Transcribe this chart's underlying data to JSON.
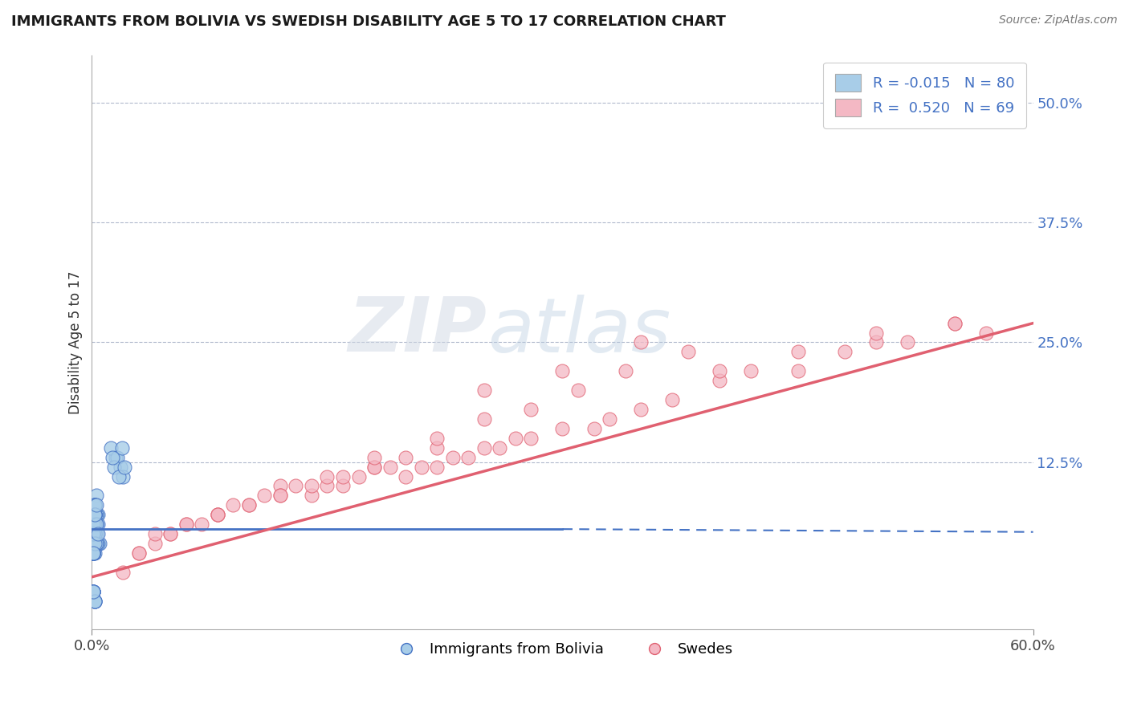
{
  "title": "IMMIGRANTS FROM BOLIVIA VS SWEDISH DISABILITY AGE 5 TO 17 CORRELATION CHART",
  "source": "Source: ZipAtlas.com",
  "ylabel": "Disability Age 5 to 17",
  "xlim": [
    0.0,
    0.6
  ],
  "ylim": [
    -0.05,
    0.55
  ],
  "xtick_positions": [
    0.0,
    0.6
  ],
  "xtick_labels": [
    "0.0%",
    "60.0%"
  ],
  "ytick_positions": [
    0.125,
    0.25,
    0.375,
    0.5
  ],
  "ytick_labels": [
    "12.5%",
    "25.0%",
    "37.5%",
    "50.0%"
  ],
  "color_blue": "#a8cde8",
  "color_pink": "#f4b8c4",
  "color_blue_dark": "#4472c4",
  "color_pink_dark": "#e06070",
  "color_grid": "#b0b8cc",
  "color_title": "#1a1a1a",
  "watermark_zip": "ZIP",
  "watermark_atlas": "atlas",
  "legend_label1": "Immigrants from Bolivia",
  "legend_label2": "Swedes",
  "blue_scatter_x": [
    0.001,
    0.002,
    0.003,
    0.004,
    0.005,
    0.001,
    0.002,
    0.003,
    0.001,
    0.002,
    0.003,
    0.004,
    0.001,
    0.002,
    0.003,
    0.001,
    0.002,
    0.003,
    0.004,
    0.001,
    0.002,
    0.001,
    0.002,
    0.003,
    0.001,
    0.002,
    0.001,
    0.002,
    0.003,
    0.001,
    0.002,
    0.001,
    0.002,
    0.001,
    0.002,
    0.003,
    0.001,
    0.002,
    0.001,
    0.002,
    0.001,
    0.002,
    0.001,
    0.001,
    0.002,
    0.001,
    0.002,
    0.001,
    0.002,
    0.003,
    0.001,
    0.001,
    0.002,
    0.001,
    0.002,
    0.003,
    0.004,
    0.002,
    0.001,
    0.003,
    0.015,
    0.018,
    0.012,
    0.02,
    0.016,
    0.014,
    0.019,
    0.017,
    0.013,
    0.021,
    0.001,
    0.002,
    0.001,
    0.002,
    0.001,
    0.002,
    0.001,
    0.001,
    0.002,
    0.001
  ],
  "blue_scatter_y": [
    0.04,
    0.06,
    0.05,
    0.07,
    0.04,
    0.08,
    0.06,
    0.05,
    0.07,
    0.03,
    0.09,
    0.04,
    0.06,
    0.05,
    0.07,
    0.03,
    0.08,
    0.04,
    0.06,
    0.05,
    0.07,
    0.03,
    0.04,
    0.06,
    0.05,
    0.07,
    0.03,
    0.08,
    0.04,
    0.06,
    0.05,
    0.03,
    0.04,
    0.06,
    0.05,
    0.07,
    0.03,
    0.08,
    0.04,
    0.06,
    0.05,
    0.07,
    0.03,
    0.04,
    0.06,
    0.05,
    0.07,
    0.03,
    0.08,
    0.04,
    0.06,
    0.05,
    0.07,
    0.03,
    0.04,
    0.06,
    0.05,
    0.07,
    0.03,
    0.08,
    0.13,
    0.12,
    0.14,
    0.11,
    0.13,
    0.12,
    0.14,
    0.11,
    0.13,
    0.12,
    -0.01,
    -0.02,
    -0.01,
    -0.02,
    -0.01,
    -0.02,
    -0.01,
    -0.01,
    -0.02,
    -0.01
  ],
  "pink_scatter_x": [
    0.02,
    0.03,
    0.04,
    0.05,
    0.06,
    0.07,
    0.08,
    0.09,
    0.1,
    0.11,
    0.12,
    0.13,
    0.14,
    0.15,
    0.16,
    0.17,
    0.18,
    0.19,
    0.2,
    0.21,
    0.22,
    0.23,
    0.24,
    0.25,
    0.26,
    0.27,
    0.28,
    0.3,
    0.32,
    0.33,
    0.35,
    0.37,
    0.4,
    0.42,
    0.45,
    0.48,
    0.5,
    0.52,
    0.55,
    0.57,
    0.04,
    0.06,
    0.08,
    0.1,
    0.12,
    0.14,
    0.16,
    0.18,
    0.2,
    0.22,
    0.03,
    0.05,
    0.08,
    0.12,
    0.15,
    0.18,
    0.22,
    0.25,
    0.28,
    0.31,
    0.34,
    0.38,
    0.25,
    0.3,
    0.35,
    0.4,
    0.45,
    0.5,
    0.55
  ],
  "pink_scatter_y": [
    0.01,
    0.03,
    0.04,
    0.05,
    0.06,
    0.06,
    0.07,
    0.08,
    0.08,
    0.09,
    0.1,
    0.1,
    0.09,
    0.1,
    0.1,
    0.11,
    0.12,
    0.12,
    0.11,
    0.12,
    0.12,
    0.13,
    0.13,
    0.14,
    0.14,
    0.15,
    0.15,
    0.16,
    0.16,
    0.17,
    0.18,
    0.19,
    0.21,
    0.22,
    0.22,
    0.24,
    0.25,
    0.25,
    0.27,
    0.26,
    0.05,
    0.06,
    0.07,
    0.08,
    0.09,
    0.1,
    0.11,
    0.12,
    0.13,
    0.14,
    0.03,
    0.05,
    0.07,
    0.09,
    0.11,
    0.13,
    0.15,
    0.17,
    0.18,
    0.2,
    0.22,
    0.24,
    0.2,
    0.22,
    0.25,
    0.22,
    0.24,
    0.26,
    0.27
  ],
  "blue_line_x": [
    0.0,
    0.3,
    0.6
  ],
  "blue_line_y": [
    0.055,
    0.055,
    0.052
  ],
  "pink_line_x": [
    0.0,
    0.6
  ],
  "pink_line_y": [
    0.005,
    0.27
  ]
}
